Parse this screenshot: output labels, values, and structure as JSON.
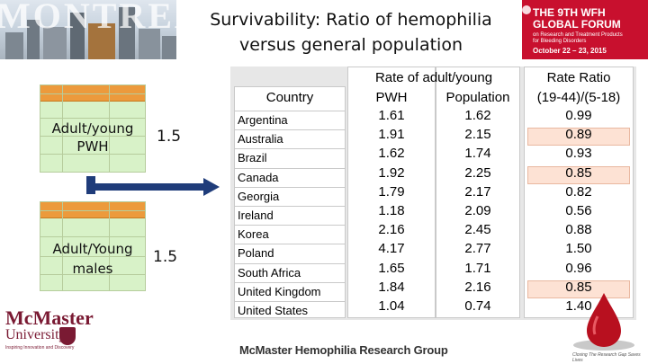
{
  "banner": {
    "city_word": "MONTREAL"
  },
  "title": {
    "line1": "Survivability: Ratio of hemophilia",
    "line2": "versus general population"
  },
  "logo": {
    "line1": "THE 9TH WFH",
    "line2": "GLOBAL FORUM",
    "line3a": "on Research and Treatment Products",
    "line3b": "for Bleeding Disorders",
    "line4": "October 22 – 23, 2015",
    "color": "#c8102e"
  },
  "left_panel": {
    "box1": {
      "line1": "Adult/young",
      "line2": "PWH",
      "value": "1.5"
    },
    "box2": {
      "line1": "Adult/Young",
      "line2": "males",
      "value": "1.5"
    },
    "arrow_color": "#1f3c7a"
  },
  "table": {
    "header_group": "Rate of adult/young",
    "header_ratio": "Rate Ratio",
    "col_country": "Country",
    "col_pwh": "PWH",
    "col_pop": "Population",
    "col_ratio": "(19-44)/(5-18)",
    "rows": [
      {
        "country": "Argentina",
        "pwh": "1.61",
        "pop": "1.62",
        "ratio": "0.99",
        "highlight": false
      },
      {
        "country": "Australia",
        "pwh": "1.91",
        "pop": "2.15",
        "ratio": "0.89",
        "highlight": true
      },
      {
        "country": "Brazil",
        "pwh": "1.62",
        "pop": "1.74",
        "ratio": "0.93",
        "highlight": false
      },
      {
        "country": "Canada",
        "pwh": "1.92",
        "pop": "2.25",
        "ratio": "0.85",
        "highlight": true
      },
      {
        "country": "Georgia",
        "pwh": "1.79",
        "pop": "2.17",
        "ratio": "0.82",
        "highlight": false
      },
      {
        "country": "Ireland",
        "pwh": "1.18",
        "pop": "2.09",
        "ratio": "0.56",
        "highlight": false
      },
      {
        "country": "Korea",
        "pwh": "2.16",
        "pop": "2.45",
        "ratio": "0.88",
        "highlight": false
      },
      {
        "country": "Poland",
        "pwh": "4.17",
        "pop": "2.77",
        "ratio": "1.50",
        "highlight": false
      },
      {
        "country": "South Africa",
        "pwh": "1.65",
        "pop": "1.71",
        "ratio": "0.96",
        "highlight": false
      },
      {
        "country": "United Kingdom",
        "pwh": "1.84",
        "pop": "2.16",
        "ratio": "0.85",
        "highlight": true
      },
      {
        "country": "United States",
        "pwh": "1.04",
        "pop": "0.74",
        "ratio": "1.40",
        "highlight": false
      }
    ],
    "highlight_color": "#fde2d4"
  },
  "footer": {
    "org_line1": "McMaster",
    "org_line2": "University",
    "org_tagline": "Inspiring Innovation and Discovery",
    "group": "McMaster Hemophilia Research Group",
    "drop_tagline": "Closing The Research Gap Saves Lives"
  }
}
